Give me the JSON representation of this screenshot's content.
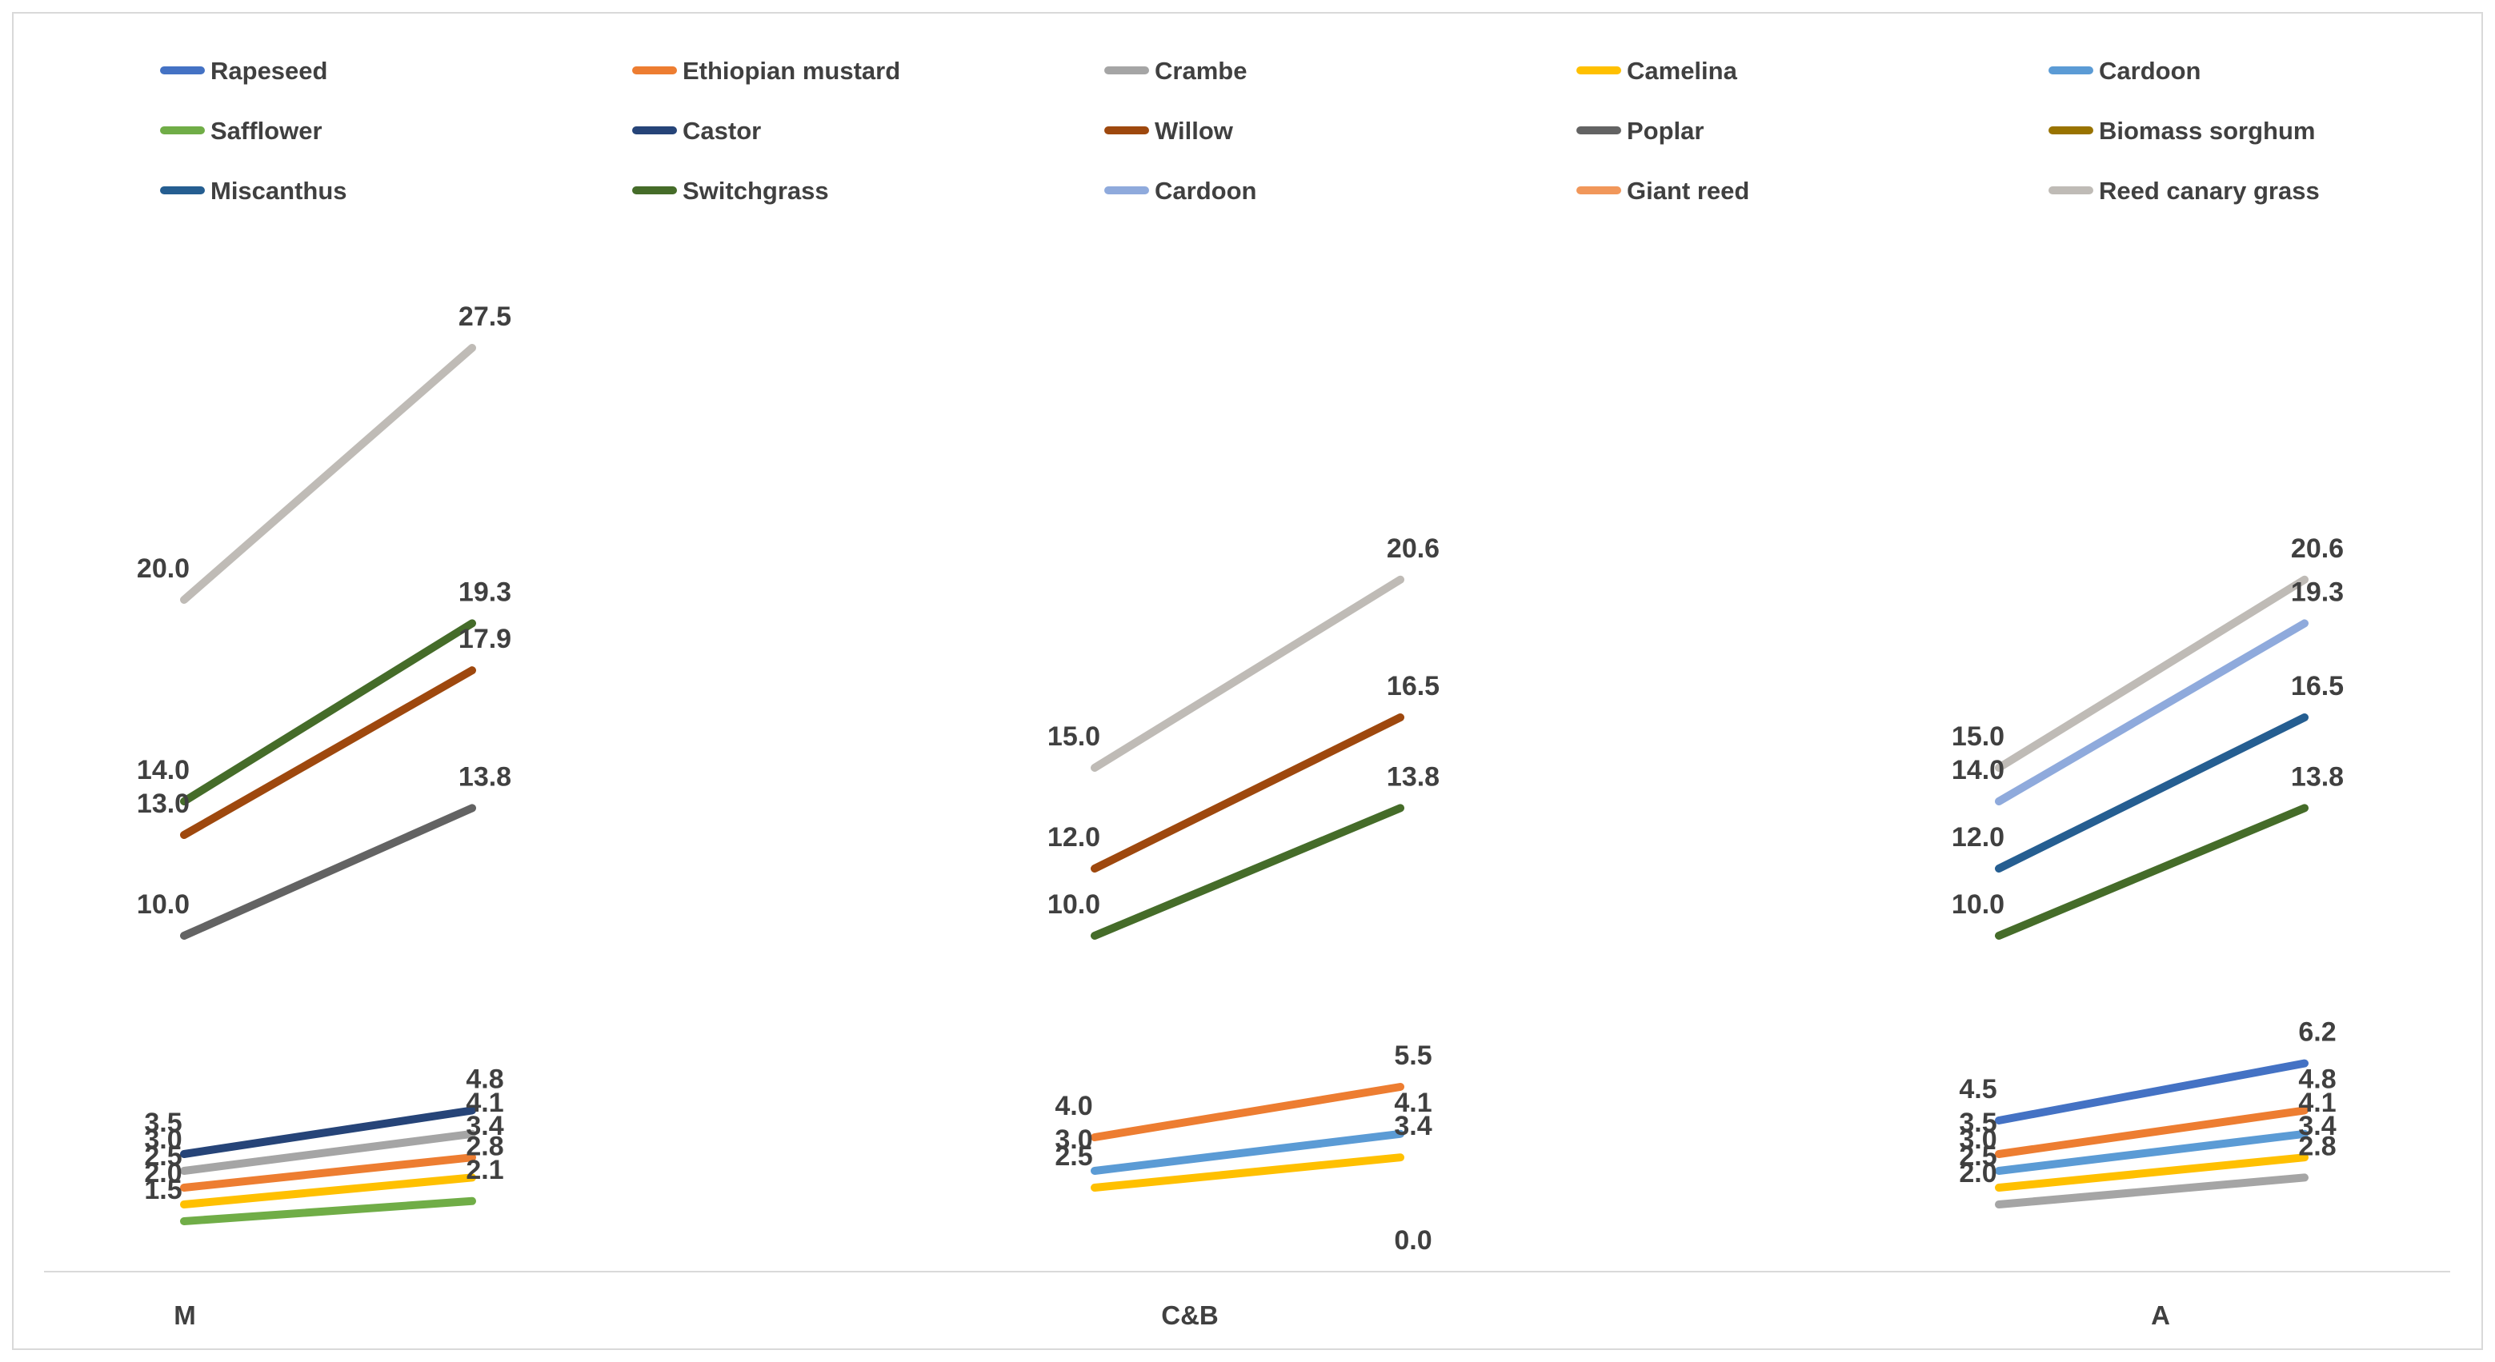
{
  "chart_data": {
    "type": "line",
    "subtype": "slope-range-chart",
    "title": "",
    "categories": [
      "M",
      "C&B",
      "A"
    ],
    "legend_position": "top",
    "grid": "off",
    "y_axis": {
      "visible": false,
      "min": 0,
      "max": 30
    },
    "x_axis": {
      "labels": [
        "M",
        "C&B",
        "A"
      ]
    },
    "data_label_decimals": 1,
    "colors": {
      "label_text": "#404040",
      "legend_text": "#404040",
      "axis_line": "#D9D9D9",
      "border": "#D9D9D9",
      "background": "#FFFFFF"
    },
    "series": [
      {
        "name": "Rapeseed",
        "color": "#4472C4",
        "values": {
          "M": null,
          "C&B": null,
          "A": [
            4.5,
            6.2
          ]
        }
      },
      {
        "name": "Ethiopian mustard",
        "color": "#ED7D31",
        "values": {
          "M": [
            2.5,
            3.4
          ],
          "C&B": [
            4.0,
            5.5
          ],
          "A": [
            3.5,
            4.8
          ]
        }
      },
      {
        "name": "Crambe",
        "color": "#A5A5A5",
        "values": {
          "M": [
            3.0,
            4.1
          ],
          "C&B": null,
          "A": [
            2.0,
            2.8
          ]
        }
      },
      {
        "name": "Camelina",
        "color": "#FFC000",
        "values": {
          "M": [
            2.0,
            2.8
          ],
          "C&B": [
            2.5,
            3.4
          ],
          "A": [
            2.5,
            3.4
          ]
        }
      },
      {
        "name": "Cardoon",
        "color": "#5B9BD5",
        "values": {
          "M": null,
          "C&B": [
            3.0,
            4.1
          ],
          "A": [
            3.0,
            4.1
          ]
        }
      },
      {
        "name": "Safflower",
        "color": "#70AD47",
        "values": {
          "M": [
            1.5,
            2.1
          ],
          "C&B": null,
          "A": null
        }
      },
      {
        "name": "Castor",
        "color": "#264478",
        "values": {
          "M": [
            3.5,
            4.8
          ],
          "C&B": null,
          "A": null
        }
      },
      {
        "name": "Willow",
        "color": "#9E480E",
        "values": {
          "M": [
            13.0,
            17.9
          ],
          "C&B": [
            12.0,
            16.5
          ],
          "A": null
        }
      },
      {
        "name": "Poplar",
        "color": "#636363",
        "values": {
          "M": [
            10.0,
            13.8
          ],
          "C&B": null,
          "A": null
        }
      },
      {
        "name": "Biomass sorghum",
        "color": "#997300",
        "values": {
          "M": null,
          "C&B": null,
          "A": null
        }
      },
      {
        "name": "Miscanthus",
        "color": "#255E91",
        "values": {
          "M": null,
          "C&B": null,
          "A": [
            12.0,
            16.5
          ]
        }
      },
      {
        "name": "Switchgrass",
        "color": "#456C29",
        "values": {
          "M": [
            14.0,
            19.3
          ],
          "C&B": [
            10.0,
            13.8
          ],
          "A": [
            10.0,
            13.8
          ]
        }
      },
      {
        "name": "Cardoon",
        "color": "#8FAADC",
        "values": {
          "M": null,
          "C&B": null,
          "A": [
            14.0,
            19.3
          ]
        }
      },
      {
        "name": "Giant reed",
        "color": "#F1975A",
        "values": {
          "M": null,
          "C&B": [
            null,
            0.0
          ],
          "A": null
        }
      },
      {
        "name": "Reed canary grass",
        "color": "#BFBBB6",
        "values": {
          "M": [
            20.0,
            27.5
          ],
          "C&B": [
            15.0,
            20.6
          ],
          "A": [
            15.0,
            20.6
          ]
        }
      }
    ]
  }
}
